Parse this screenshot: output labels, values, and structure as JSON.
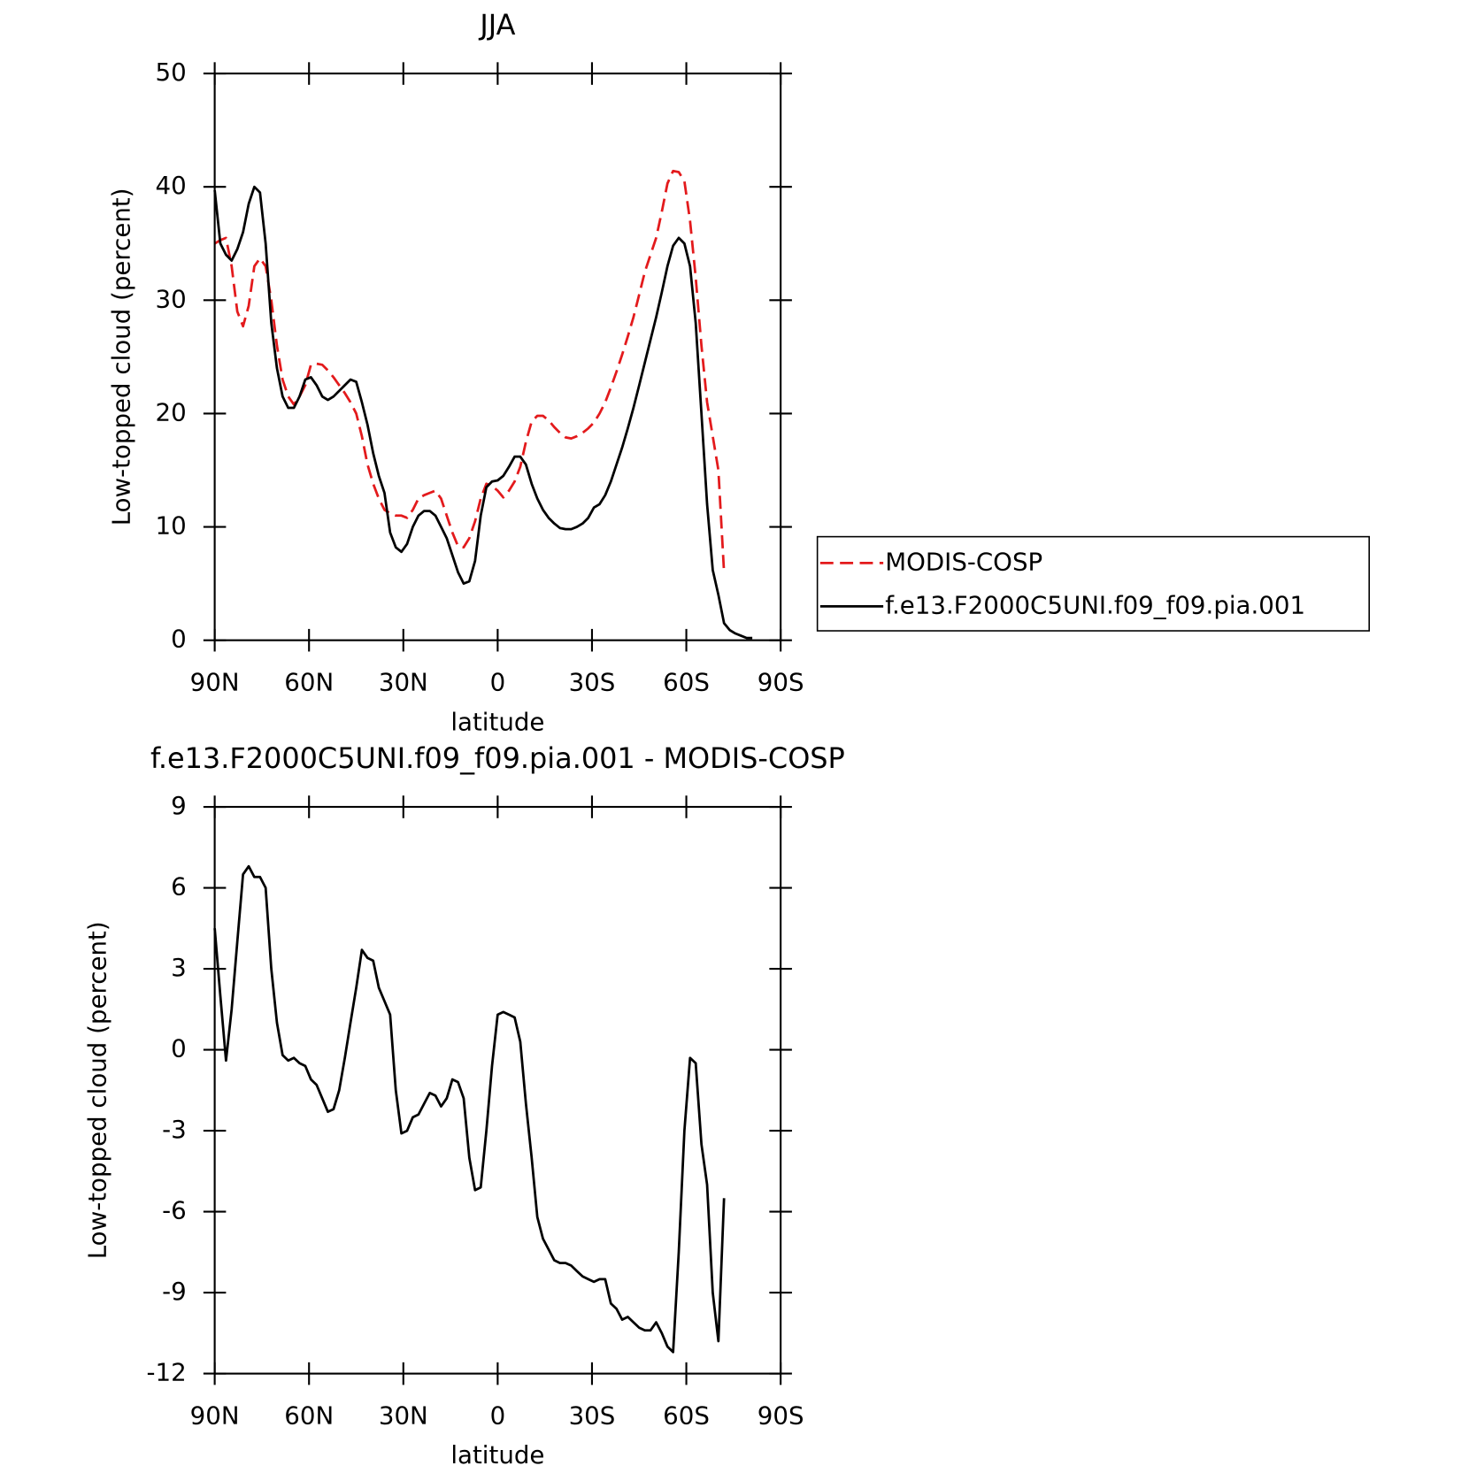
{
  "chart_data": [
    {
      "type": "line",
      "title": "JJA",
      "x_label": "latitude",
      "y_label": "Low-topped cloud (percent)",
      "x": [
        90,
        88.2,
        86.4,
        84.6,
        82.8,
        81,
        79.2,
        77.4,
        75.6,
        73.8,
        72,
        70.2,
        68.4,
        66.6,
        64.8,
        63,
        61.2,
        59.4,
        57.6,
        55.8,
        54,
        52.2,
        50.4,
        48.6,
        46.8,
        45,
        43.2,
        41.4,
        39.6,
        37.8,
        36,
        34.2,
        32.4,
        30.6,
        28.8,
        27,
        25.2,
        23.4,
        21.6,
        19.8,
        18,
        16.2,
        14.4,
        12.6,
        10.8,
        9,
        7.2,
        5.4,
        3.6,
        1.8,
        0,
        -1.8,
        -3.6,
        -5.4,
        -7.2,
        -9,
        -10.8,
        -12.6,
        -14.4,
        -16.2,
        -18,
        -19.8,
        -21.6,
        -23.4,
        -25.2,
        -27,
        -28.8,
        -30.6,
        -32.4,
        -34.2,
        -36,
        -37.8,
        -39.6,
        -41.4,
        -43.2,
        -45,
        -46.8,
        -48.6,
        -50.4,
        -52.2,
        -54,
        -55.8,
        -57.6,
        -59.4,
        -61.2,
        -63,
        -64.8,
        -66.6,
        -68.4,
        -70.2,
        -72,
        -73.8,
        -75.6,
        -77.4,
        -79.2,
        -81
      ],
      "series": [
        {
          "name": "MODIS-COSP",
          "color": "#e31a1c",
          "dash": true,
          "values": [
            35,
            35.3,
            35.5,
            33,
            29,
            27.7,
            29.5,
            33,
            33.7,
            33,
            30,
            26,
            23,
            21.5,
            20.8,
            21.5,
            22.5,
            24.3,
            24.4,
            24.3,
            23.8,
            23.2,
            22.5,
            21.8,
            21,
            20,
            18,
            15.5,
            13.8,
            12.5,
            11.5,
            11.2,
            11,
            11,
            10.8,
            11.5,
            12.5,
            12.8,
            13,
            13.2,
            12.5,
            11,
            9.5,
            8.3,
            8.2,
            9,
            10.5,
            12.5,
            13.8,
            13.6,
            13.2,
            12.6,
            13.2,
            14,
            15.3,
            17.5,
            19.3,
            19.8,
            19.8,
            19.4,
            18.8,
            18.3,
            17.9,
            17.8,
            18,
            18.3,
            18.7,
            19.2,
            20,
            21,
            22.3,
            23.7,
            25.2,
            26.8,
            28.5,
            30.5,
            32.5,
            34,
            35.5,
            37.8,
            40.3,
            41.4,
            41.3,
            40.5,
            37,
            32,
            26,
            21,
            18,
            15,
            6,
            null,
            null,
            null,
            null,
            null
          ]
        },
        {
          "name": "f.e13.F2000C5UNI.f09_f09.pia.001",
          "color": "#000000",
          "dash": false,
          "values": [
            39.7,
            35,
            34,
            33.5,
            34.5,
            36,
            38.5,
            40,
            39.5,
            35,
            28,
            24,
            21.5,
            20.5,
            20.5,
            21.5,
            23,
            23.2,
            22.5,
            21.5,
            21.2,
            21.5,
            22,
            22.5,
            23,
            22.8,
            21,
            19,
            16.5,
            14.5,
            13,
            9.5,
            8.2,
            7.8,
            8.5,
            10,
            11,
            11.4,
            11.4,
            11,
            10,
            9,
            7.5,
            6,
            5,
            5.2,
            7,
            11,
            13.5,
            14,
            14.1,
            14.5,
            15.3,
            16.2,
            16.2,
            15.5,
            13.8,
            12.5,
            11.5,
            10.8,
            10.3,
            9.9,
            9.8,
            9.8,
            10,
            10.3,
            10.8,
            11.7,
            12,
            12.8,
            14,
            15.5,
            17,
            18.7,
            20.5,
            22.5,
            24.5,
            26.5,
            28.5,
            30.7,
            33,
            34.8,
            35.5,
            35,
            33,
            28,
            20,
            12,
            6.2,
            4,
            1.5,
            0.9,
            0.6,
            0.4,
            0.2,
            0.2
          ]
        }
      ],
      "xlim": [
        90,
        -90
      ],
      "xticks": [
        {
          "value": 90,
          "label": "90N"
        },
        {
          "value": 60,
          "label": "60N"
        },
        {
          "value": 30,
          "label": "30N"
        },
        0,
        {
          "value": -30,
          "label": "30S"
        },
        {
          "value": -60,
          "label": "60S"
        },
        {
          "value": -90,
          "label": "90S"
        }
      ],
      "ylim": [
        0,
        50
      ],
      "yticks": [
        0,
        10,
        20,
        30,
        40,
        50
      ],
      "legend": "right"
    },
    {
      "type": "line",
      "title": "f.e13.F2000C5UNI.f09_f09.pia.001 - MODIS-COSP",
      "x_label": "latitude",
      "y_label": "Low-topped cloud (percent)",
      "x": [
        90,
        88.2,
        86.4,
        84.6,
        82.8,
        81,
        79.2,
        77.4,
        75.6,
        73.8,
        72,
        70.2,
        68.4,
        66.6,
        64.8,
        63,
        61.2,
        59.4,
        57.6,
        55.8,
        54,
        52.2,
        50.4,
        48.6,
        46.8,
        45,
        43.2,
        41.4,
        39.6,
        37.8,
        36,
        34.2,
        32.4,
        30.6,
        28.8,
        27,
        25.2,
        23.4,
        21.6,
        19.8,
        18,
        16.2,
        14.4,
        12.6,
        10.8,
        9,
        7.2,
        5.4,
        3.6,
        1.8,
        0,
        -1.8,
        -3.6,
        -5.4,
        -7.2,
        -9,
        -10.8,
        -12.6,
        -14.4,
        -16.2,
        -18,
        -19.8,
        -21.6,
        -23.4,
        -25.2,
        -27,
        -28.8,
        -30.6,
        -32.4,
        -34.2,
        -36,
        -37.8,
        -39.6,
        -41.4,
        -43.2,
        -45,
        -46.8,
        -48.6,
        -50.4,
        -52.2,
        -54,
        -55.8,
        -57.6,
        -59.4,
        -61.2,
        -63,
        -64.8,
        -66.6,
        -68.4,
        -70.2,
        -72
      ],
      "values": [
        4.5,
        2,
        -0.4,
        1.5,
        4,
        6.5,
        6.8,
        6.4,
        6.4,
        6,
        3,
        1,
        -0.2,
        -0.4,
        -0.3,
        -0.5,
        -0.6,
        -1.1,
        -1.3,
        -1.8,
        -2.3,
        -2.2,
        -1.5,
        -0.3,
        1,
        2.3,
        3.7,
        3.4,
        3.3,
        2.3,
        1.8,
        1.3,
        -1.5,
        -3.1,
        -3,
        -2.5,
        -2.4,
        -2,
        -1.6,
        -1.7,
        -2.1,
        -1.8,
        -1.1,
        -1.2,
        -1.8,
        -4,
        -5.2,
        -5.1,
        -3,
        -0.6,
        1.3,
        1.4,
        1.3,
        1.2,
        0.3,
        -2,
        -4,
        -6.2,
        -7,
        -7.4,
        -7.8,
        -7.9,
        -7.9,
        -8,
        -8.2,
        -8.4,
        -8.5,
        -8.6,
        -8.5,
        -8.5,
        -9.4,
        -9.6,
        -10,
        -9.9,
        -10.1,
        -10.3,
        -10.4,
        -10.4,
        -10.1,
        -10.5,
        -11,
        -11.2,
        -7.5,
        -3,
        -0.3,
        -0.5,
        -3.5,
        -5,
        -9,
        -10.8,
        -5.5
      ],
      "color": "#000000",
      "xlim": [
        90,
        -90
      ],
      "xticks": [
        {
          "value": 90,
          "label": "90N"
        },
        {
          "value": 60,
          "label": "60N"
        },
        {
          "value": 30,
          "label": "30N"
        },
        0,
        {
          "value": -30,
          "label": "30S"
        },
        {
          "value": -60,
          "label": "60S"
        },
        {
          "value": -90,
          "label": "90S"
        }
      ],
      "ylim": [
        -12,
        9
      ],
      "yticks": [
        -12,
        -9,
        -6,
        -3,
        0,
        3,
        6,
        9
      ]
    }
  ]
}
